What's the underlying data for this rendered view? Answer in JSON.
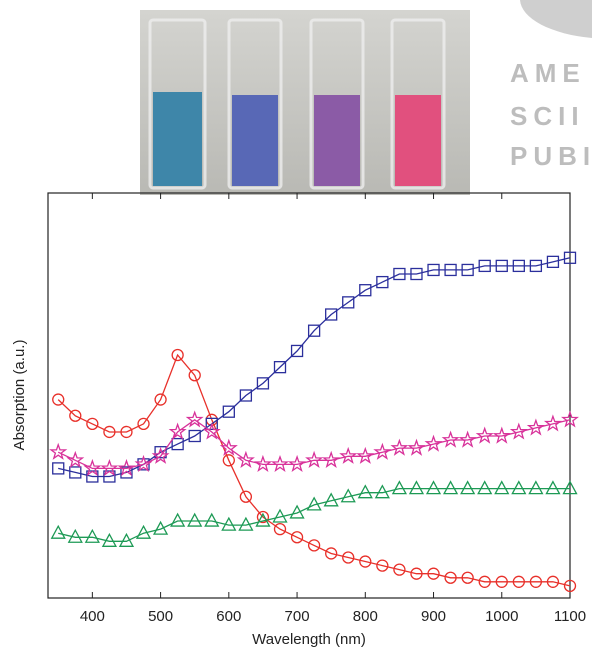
{
  "chart_data": {
    "type": "line",
    "xlabel": "Wavelength (nm)",
    "ylabel": "Absorption (a.u.)",
    "x": [
      350,
      375,
      400,
      425,
      450,
      475,
      500,
      525,
      550,
      575,
      600,
      625,
      650,
      675,
      700,
      725,
      750,
      775,
      800,
      825,
      850,
      875,
      900,
      925,
      950,
      975,
      1000,
      1025,
      1050,
      1075,
      1100
    ],
    "series": [
      {
        "color": "#e8302a",
        "marker": "circle",
        "values": [
          0.49,
          0.45,
          0.43,
          0.41,
          0.41,
          0.43,
          0.49,
          0.6,
          0.55,
          0.44,
          0.34,
          0.25,
          0.2,
          0.17,
          0.15,
          0.13,
          0.11,
          0.1,
          0.09,
          0.08,
          0.07,
          0.06,
          0.06,
          0.05,
          0.05,
          0.04,
          0.04,
          0.04,
          0.04,
          0.04,
          0.03
        ]
      },
      {
        "color": "#2b2f9c",
        "marker": "square",
        "values": [
          0.32,
          0.31,
          0.3,
          0.3,
          0.31,
          0.33,
          0.36,
          0.38,
          0.4,
          0.43,
          0.46,
          0.5,
          0.53,
          0.57,
          0.61,
          0.66,
          0.7,
          0.73,
          0.76,
          0.78,
          0.8,
          0.8,
          0.81,
          0.81,
          0.81,
          0.82,
          0.82,
          0.82,
          0.82,
          0.83,
          0.84
        ]
      },
      {
        "color": "#d8329a",
        "marker": "star",
        "values": [
          0.36,
          0.34,
          0.32,
          0.32,
          0.32,
          0.33,
          0.35,
          0.41,
          0.44,
          0.41,
          0.37,
          0.34,
          0.33,
          0.33,
          0.33,
          0.34,
          0.34,
          0.35,
          0.35,
          0.36,
          0.37,
          0.37,
          0.38,
          0.39,
          0.39,
          0.4,
          0.4,
          0.41,
          0.42,
          0.43,
          0.44
        ]
      },
      {
        "color": "#1d9a55",
        "marker": "triangle",
        "values": [
          0.16,
          0.15,
          0.15,
          0.14,
          0.14,
          0.16,
          0.17,
          0.19,
          0.19,
          0.19,
          0.18,
          0.18,
          0.19,
          0.2,
          0.21,
          0.23,
          0.24,
          0.25,
          0.26,
          0.26,
          0.27,
          0.27,
          0.27,
          0.27,
          0.27,
          0.27,
          0.27,
          0.27,
          0.27,
          0.27,
          0.27
        ]
      }
    ],
    "xlim": [
      335,
      1100
    ],
    "ylim": [
      0,
      1
    ],
    "xticks": [
      400,
      500,
      600,
      700,
      800,
      900,
      1000,
      1100
    ]
  },
  "watermark": [
    "AME",
    "SCII",
    "PUBI"
  ]
}
